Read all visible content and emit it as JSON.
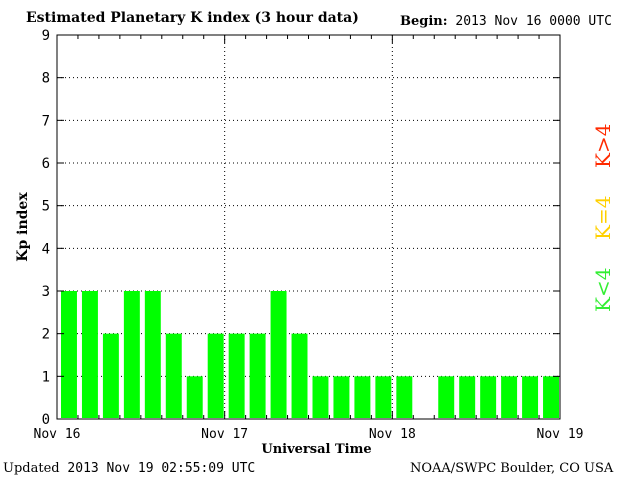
{
  "header": {
    "title": "Estimated Planetary K index (3 hour data)",
    "begin_label": "Begin:",
    "begin_value": "2013 Nov 16 0000 UTC"
  },
  "footer": {
    "updated_label": "Updated",
    "updated_value": "2013 Nov 19 02:55:09 UTC",
    "credit": "NOAA/SWPC Boulder, CO USA"
  },
  "legend": {
    "high": "K>4",
    "mid": "K=4",
    "low": "K<4"
  },
  "colors": {
    "bar_low": "#00ff00",
    "legend_high": "#ff2a00",
    "legend_mid": "#ffd000",
    "legend_low": "#33ee33"
  },
  "chart_data": {
    "type": "bar",
    "title": "Estimated Planetary K index (3 hour data)",
    "xlabel": "Universal Time",
    "ylabel": "Kp index",
    "ylim": [
      0,
      9
    ],
    "yticks": [
      "0",
      "1",
      "2",
      "3",
      "4",
      "5",
      "6",
      "7",
      "8",
      "9"
    ],
    "xtick_labels": [
      "Nov 16",
      "Nov 17",
      "Nov 18",
      "Nov 19"
    ],
    "grid": true,
    "slots_per_day": 8,
    "days": 3,
    "values": [
      3,
      3,
      2,
      3,
      3,
      2,
      1,
      2,
      2,
      2,
      3,
      2,
      1,
      1,
      1,
      1,
      1,
      null,
      1,
      1,
      1,
      1,
      1,
      1
    ]
  }
}
